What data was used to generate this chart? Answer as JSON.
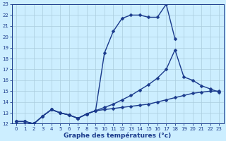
{
  "title": "Graphe des températures (°c)",
  "bg_color": "#cceeff",
  "line_color": "#1a3a8c",
  "grid_color": "#aaccdd",
  "xmin": 0,
  "xmax": 23,
  "ymin": 12,
  "ymax": 23,
  "line1_x": [
    0,
    1,
    2,
    3,
    4,
    5,
    6,
    7,
    8,
    9,
    10,
    11,
    12,
    13,
    14,
    15,
    16,
    17,
    18
  ],
  "line1_y": [
    12.2,
    12.2,
    12.0,
    12.7,
    13.3,
    13.0,
    12.8,
    12.5,
    12.9,
    13.2,
    18.5,
    20.5,
    21.7,
    22.0,
    22.0,
    21.8,
    21.8,
    23.0,
    19.8
  ],
  "line2_x": [
    0,
    1,
    2,
    3,
    4,
    5,
    6,
    7,
    8,
    9,
    10,
    11,
    12,
    13,
    14,
    15,
    16,
    17,
    18,
    19,
    20,
    21,
    22,
    23
  ],
  "line2_y": [
    12.2,
    12.2,
    12.0,
    12.7,
    13.3,
    13.0,
    12.8,
    12.5,
    12.9,
    13.2,
    13.5,
    13.8,
    14.2,
    14.6,
    15.1,
    15.6,
    16.2,
    17.0,
    18.8,
    16.3,
    16.0,
    15.5,
    15.2,
    14.9
  ],
  "line3_x": [
    0,
    1,
    2,
    3,
    4,
    5,
    6,
    7,
    8,
    9,
    10,
    11,
    12,
    13,
    14,
    15,
    16,
    17,
    18,
    19,
    20,
    21,
    22,
    23
  ],
  "line3_y": [
    12.2,
    12.2,
    12.0,
    12.7,
    13.3,
    13.0,
    12.8,
    12.5,
    12.9,
    13.2,
    13.3,
    13.4,
    13.5,
    13.6,
    13.7,
    13.8,
    14.0,
    14.2,
    14.4,
    14.6,
    14.8,
    14.9,
    15.0,
    15.0
  ],
  "figsize": [
    3.2,
    2.0
  ],
  "dpi": 100,
  "xlabel_fontsize": 6.5,
  "tick_fontsize": 5.0,
  "linewidth": 1.0,
  "markersize": 2.5
}
